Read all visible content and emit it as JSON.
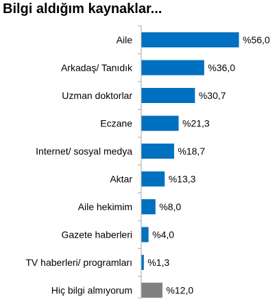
{
  "chart_data": {
    "type": "bar",
    "orientation": "horizontal",
    "title": "Bilgi aldığım kaynaklar...",
    "categories": [
      "Aile",
      "Arkadaş/ Tanıdık",
      "Uzman doktorlar",
      "Eczane",
      "Internet/ sosyal medya",
      "Aktar",
      "Aile hekimim",
      "Gazete haberleri",
      "TV haberleri/ programları",
      "Hiç bilgi almıyorum"
    ],
    "values": [
      56.0,
      36.0,
      30.7,
      21.3,
      18.7,
      13.3,
      8.0,
      4.0,
      1.3,
      12.0
    ],
    "value_labels": [
      "%56,0",
      "%36,0",
      "%30,7",
      "%21,3",
      "%18,7",
      "%13,3",
      "%8,0",
      "%4,0",
      "%1,3",
      "%12,0"
    ],
    "colors": [
      "#0070C0",
      "#0070C0",
      "#0070C0",
      "#0070C0",
      "#0070C0",
      "#0070C0",
      "#0070C0",
      "#0070C0",
      "#0070C0",
      "#808080"
    ],
    "axis_color": "#A6A6A6",
    "grid": false,
    "legend": "none",
    "xlim": [
      0,
      56
    ]
  }
}
